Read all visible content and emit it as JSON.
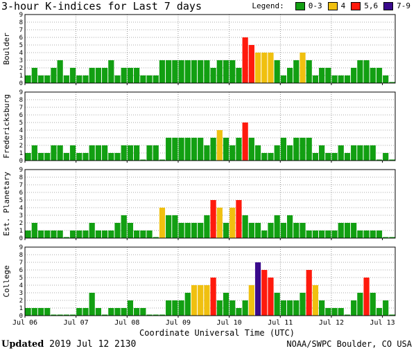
{
  "header": {
    "title": "3-hour K-indices for Last 7 days",
    "legend_title": "Legend:",
    "legend": [
      {
        "label": "0-3",
        "color": "#129f12"
      },
      {
        "label": "4",
        "color": "#f0c010"
      },
      {
        "label": "5,6",
        "color": "#ff1a0d"
      },
      {
        "label": "7-9",
        "color": "#3a0a8c"
      }
    ]
  },
  "footer": {
    "updated_label": "Updated",
    "updated_value": "2019 Jul 12 2130",
    "credit": "NOAA/SWPC Boulder, CO USA"
  },
  "chart_data": {
    "type": "bar",
    "xlabel": "Coordinate Universal Time (UTC)",
    "x_ticks": [
      "Jul 06",
      "Jul 07",
      "Jul 08",
      "Jul 09",
      "Jul 10",
      "Jul 11",
      "Jul 12",
      "Jul 13"
    ],
    "ylim": [
      0,
      9
    ],
    "y_ticks": [
      0,
      1,
      2,
      3,
      4,
      5,
      6,
      7,
      8,
      9
    ],
    "grid": true,
    "color_rule": {
      "0-3": "#129f12",
      "4": "#f0c010",
      "5-6": "#ff1a0d",
      "7-9": "#3a0a8c"
    },
    "panels": [
      {
        "name": "Boulder",
        "values": [
          1,
          2,
          1,
          1,
          2,
          3,
          1,
          2,
          1,
          1,
          2,
          2,
          2,
          3,
          1,
          2,
          2,
          2,
          1,
          1,
          1,
          3,
          3,
          3,
          3,
          3,
          3,
          3,
          3,
          2,
          3,
          3,
          3,
          2,
          6,
          5,
          4,
          4,
          4,
          3,
          1,
          2,
          3,
          4,
          3,
          1,
          2,
          2,
          1,
          1,
          1,
          2,
          3,
          3,
          2,
          2,
          1,
          0
        ]
      },
      {
        "name": "Fredericksburg",
        "values": [
          1,
          2,
          1,
          1,
          2,
          2,
          1,
          2,
          1,
          1,
          2,
          2,
          2,
          1,
          1,
          2,
          2,
          2,
          0,
          2,
          2,
          0,
          3,
          3,
          3,
          3,
          3,
          3,
          2,
          3,
          4,
          3,
          2,
          3,
          5,
          3,
          2,
          1,
          1,
          2,
          3,
          2,
          3,
          3,
          3,
          1,
          2,
          1,
          1,
          2,
          1,
          2,
          2,
          2,
          2,
          0,
          1,
          0
        ]
      },
      {
        "name": "Est. Planetary",
        "values": [
          1,
          2,
          1,
          1,
          1,
          1,
          0,
          1,
          1,
          1,
          2,
          1,
          1,
          1,
          2,
          3,
          2,
          1,
          1,
          1,
          0,
          4,
          3,
          3,
          2,
          2,
          2,
          2,
          3,
          5,
          4,
          2,
          4,
          5,
          3,
          2,
          2,
          1,
          2,
          3,
          2,
          3,
          2,
          2,
          1,
          1,
          1,
          1,
          1,
          2,
          2,
          2,
          1,
          1,
          1,
          1,
          0,
          0
        ]
      },
      {
        "name": "College",
        "values": [
          1,
          1,
          1,
          1,
          0,
          0,
          0,
          0,
          1,
          1,
          3,
          1,
          0,
          1,
          1,
          1,
          2,
          1,
          1,
          0,
          0,
          0,
          2,
          2,
          2,
          3,
          4,
          4,
          4,
          5,
          2,
          3,
          2,
          1,
          2,
          4,
          7,
          6,
          5,
          3,
          2,
          2,
          2,
          3,
          6,
          4,
          2,
          1,
          1,
          1,
          0,
          2,
          3,
          5,
          3,
          1,
          2,
          0
        ]
      }
    ]
  }
}
